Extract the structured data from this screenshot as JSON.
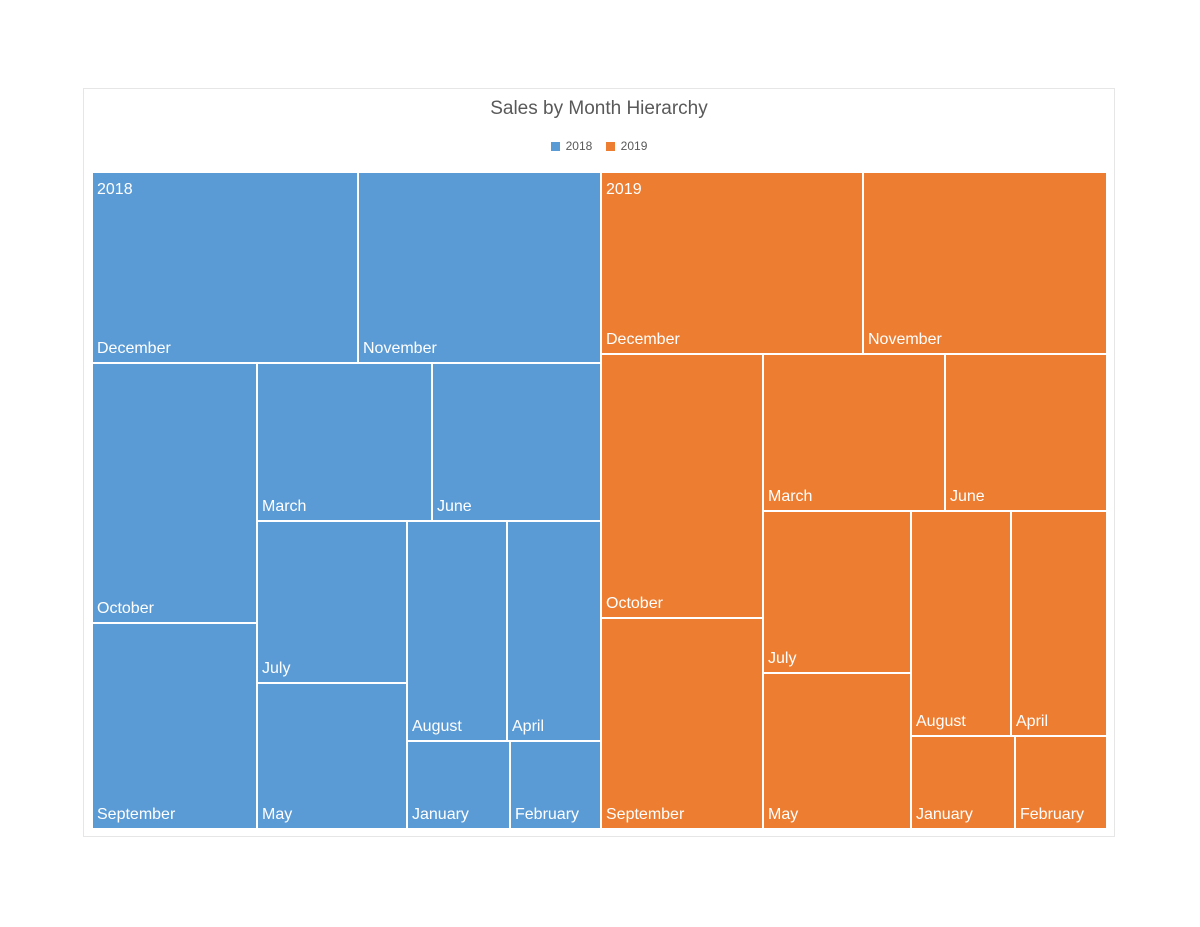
{
  "chart_data": {
    "type": "treemap",
    "title": "Sales by Month Hierarchy",
    "legend": {
      "placement": "top",
      "entries": [
        "2018",
        "2019"
      ]
    },
    "colors": {
      "2018": "#5b9bd5",
      "2019": "#ed7d31"
    },
    "note_values": "relative sizes estimated from tile areas; no values printed",
    "groups": [
      {
        "name": "2018",
        "items": [
          {
            "label": "December",
            "value": 508
          },
          {
            "label": "November",
            "value": 464
          },
          {
            "label": "October",
            "value": 429
          },
          {
            "label": "September",
            "value": 340
          },
          {
            "label": "March",
            "value": 277
          },
          {
            "label": "June",
            "value": 267
          },
          {
            "label": "July",
            "value": 243
          },
          {
            "label": "May",
            "value": 219
          },
          {
            "label": "August",
            "value": 220
          },
          {
            "label": "April",
            "value": 207
          },
          {
            "label": "January",
            "value": 91
          },
          {
            "label": "February",
            "value": 80
          }
        ]
      },
      {
        "name": "2019",
        "items": [
          {
            "label": "December",
            "value": 477
          },
          {
            "label": "November",
            "value": 444
          },
          {
            "label": "October",
            "value": 428
          },
          {
            "label": "September",
            "value": 342
          },
          {
            "label": "March",
            "value": 286
          },
          {
            "label": "June",
            "value": 254
          },
          {
            "label": "July",
            "value": 240
          },
          {
            "label": "May",
            "value": 231
          },
          {
            "label": "August",
            "value": 225
          },
          {
            "label": "April",
            "value": 216
          },
          {
            "label": "January",
            "value": 97
          },
          {
            "label": "February",
            "value": 86
          }
        ]
      }
    ]
  }
}
